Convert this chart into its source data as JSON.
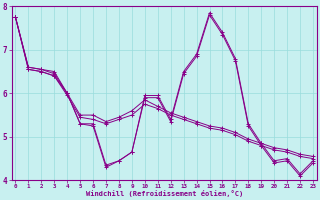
{
  "xlabel": "Windchill (Refroidissement éolien,°C)",
  "bg_color": "#c8f0f0",
  "line_color": "#880088",
  "grid_color": "#99dddd",
  "axes_color": "#880088",
  "xmin": 0,
  "xmax": 23,
  "ymin": 4,
  "ymax": 8,
  "series": [
    [
      7.75,
      6.6,
      6.55,
      6.5,
      6.0,
      5.3,
      5.3,
      4.35,
      4.45,
      4.65,
      5.95,
      5.95,
      5.4,
      6.5,
      6.9,
      7.85,
      7.4,
      6.8,
      5.3,
      4.85,
      4.45,
      4.5,
      4.15,
      4.45
    ],
    [
      7.75,
      6.6,
      6.55,
      6.45,
      6.0,
      5.5,
      5.5,
      5.35,
      5.45,
      5.6,
      5.85,
      5.7,
      5.55,
      5.45,
      5.35,
      5.25,
      5.2,
      5.1,
      4.95,
      4.85,
      4.75,
      4.7,
      4.6,
      4.55
    ],
    [
      7.75,
      6.55,
      6.5,
      6.4,
      5.95,
      5.45,
      5.4,
      5.3,
      5.4,
      5.5,
      5.75,
      5.65,
      5.5,
      5.4,
      5.3,
      5.2,
      5.15,
      5.05,
      4.9,
      4.8,
      4.7,
      4.65,
      4.55,
      4.5
    ],
    [
      7.75,
      6.55,
      6.5,
      6.4,
      6.0,
      5.3,
      5.25,
      4.3,
      4.45,
      4.65,
      5.9,
      5.9,
      5.35,
      6.45,
      6.85,
      7.8,
      7.35,
      6.75,
      5.25,
      4.8,
      4.4,
      4.45,
      4.1,
      4.4
    ]
  ],
  "xticks": [
    0,
    1,
    2,
    3,
    4,
    5,
    6,
    7,
    8,
    9,
    10,
    11,
    12,
    13,
    14,
    15,
    16,
    17,
    18,
    19,
    20,
    21,
    22,
    23
  ],
  "yticks": [
    4,
    5,
    6,
    7,
    8
  ]
}
